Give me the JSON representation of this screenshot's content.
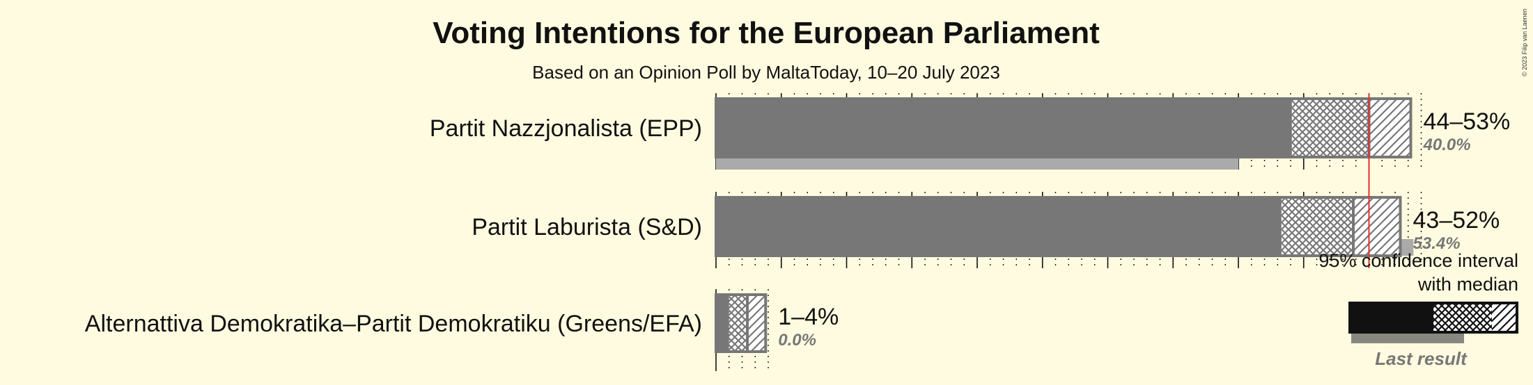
{
  "chart_data": {
    "type": "bar",
    "title": "Voting Intentions for the European Parliament",
    "subtitle": "Based on an Opinion Poll by MaltaToday, 10–20 July 2023",
    "copyright": "© 2023 Filip van Laenen",
    "xlim": [
      0,
      55
    ],
    "majority_threshold": 50,
    "categories": [
      "Partit Nazzjonalista (EPP)",
      "Partit Laburista (S&D)",
      "Alternattiva Demokratika–Partit Demokratiku (Greens/EFA)"
    ],
    "series": [
      {
        "name": "Partit Nazzjonalista (EPP)",
        "range_label": "44–53%",
        "last_result_label": "40.0%",
        "ci95_low": 44.1,
        "ci80_low": 46.3,
        "median": 50.0,
        "ci80_high": 51.2,
        "ci95_high": 53.2,
        "last_result": 40.0
      },
      {
        "name": "Partit Laburista (S&D)",
        "range_label": "43–52%",
        "last_result_label": "53.4%",
        "ci95_low": 43.3,
        "ci80_low": 45.5,
        "median": 48.8,
        "ci80_high": 50.3,
        "ci95_high": 52.4,
        "last_result": 53.4
      },
      {
        "name": "Alternattiva Demokratika–Partit Demokratiku (Greens/EFA)",
        "range_label": "1–4%",
        "last_result_label": "0.0%",
        "ci95_low": 1.0,
        "ci80_low": 1.9,
        "median": 2.4,
        "ci80_high": 2.9,
        "ci95_high": 3.8,
        "last_result": 0.0
      }
    ],
    "legend": {
      "ci_line1": "95% confidence interval",
      "ci_line2": "with median",
      "last_result": "Last result"
    }
  },
  "colors": {
    "background": "#fffbe0",
    "bar": "#777777",
    "last_result": "#aaaaaa",
    "threshold": "#e03030",
    "legend_bar": "#111111",
    "legend_last": "#888880"
  }
}
